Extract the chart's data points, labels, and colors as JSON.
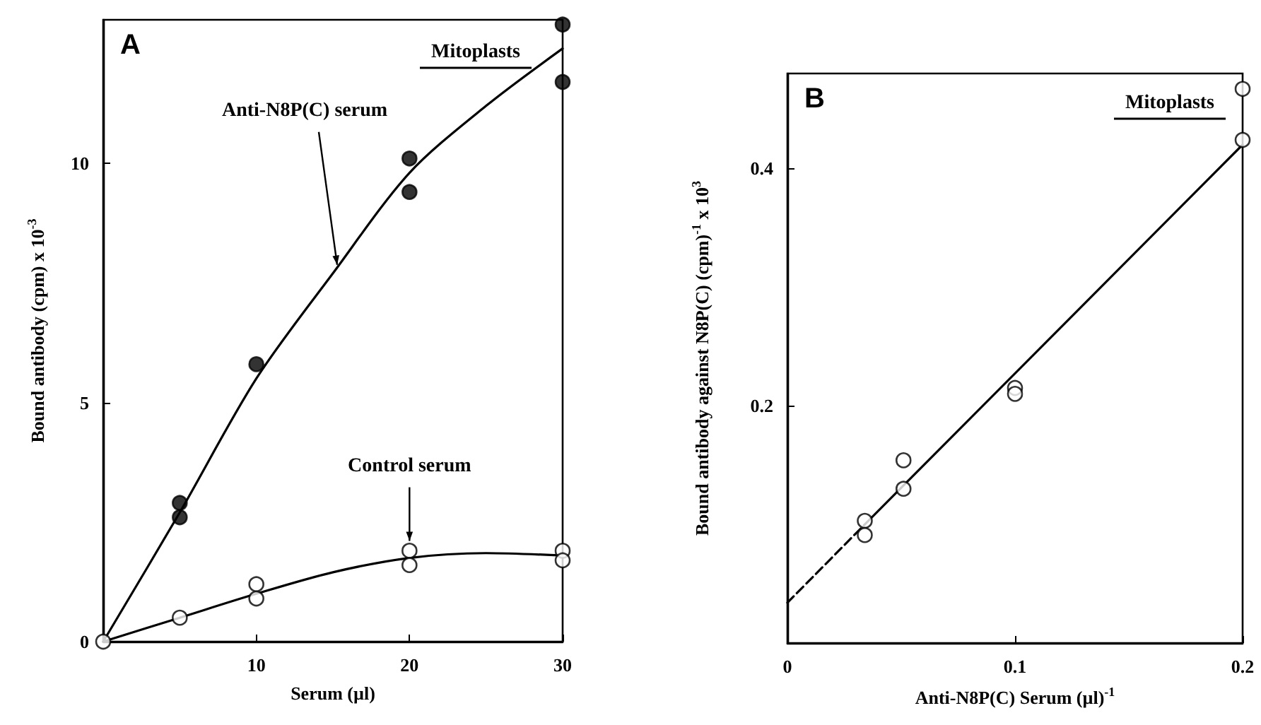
{
  "chart_data": [
    {
      "type": "scatter",
      "xlabel": "Serum (µl)",
      "ylabel": "Bound antibody (cpm) x 10$^{-3}$",
      "xlim": [
        0,
        30
      ],
      "ylim": [
        0,
        13
      ],
      "xticks": [
        {
          "value": 0,
          "label": null
        },
        10,
        20,
        30
      ],
      "yticks": [
        0,
        5,
        10
      ],
      "grid": false,
      "legend": false,
      "marker": "circle",
      "annotations": [
        "A",
        "Mitoplasts"
      ],
      "series": [
        {
          "name": "Anti-N8P(C) serum",
          "color": "#000000",
          "x": [
            5,
            5,
            10,
            20,
            20,
            30,
            30
          ],
          "values": [
            2.9,
            2.6,
            5.8,
            10.1,
            9.4,
            12.9,
            11.7
          ]
        },
        {
          "name": "Control serum",
          "color": "#ffffff",
          "x": [
            0,
            5,
            10,
            10,
            20,
            20,
            30,
            30
          ],
          "values": [
            0,
            0.5,
            1.2,
            0.9,
            1.9,
            1.6,
            1.9,
            1.7
          ]
        },
        {
          "type": "line",
          "color": "#000000",
          "marker": "none",
          "x": [
            0,
            5,
            10,
            15,
            20,
            25,
            30
          ],
          "values": [
            0,
            2.7,
            5.5,
            7.7,
            9.8,
            11.2,
            12.4
          ]
        },
        {
          "type": "line",
          "color": "#000000",
          "marker": "none",
          "x": [
            0,
            5,
            10,
            15,
            20,
            25,
            30
          ],
          "values": [
            0,
            0.5,
            1.0,
            1.45,
            1.75,
            1.85,
            1.8
          ]
        }
      ]
    },
    {
      "type": "scatter",
      "xlabel": "Anti-N8P(C) Serum (µl)$^{-1}$",
      "ylabel": "Bound antibody against N8P(C) (cpm)$^{-1}$ x 10$^{3}$",
      "xlim": [
        0,
        0.2
      ],
      "ylim": [
        0,
        0.48
      ],
      "xticks": [
        0,
        0.1,
        0.2
      ],
      "yticks": [
        0.2,
        0.4
      ],
      "grid": false,
      "legend": false,
      "marker": "circle",
      "annotations": [
        "B",
        "Mitoplasts"
      ],
      "series": [
        {
          "color": "#ffffff",
          "x": [
            0.034,
            0.034,
            0.051,
            0.051,
            0.1,
            0.1,
            0.2,
            0.2
          ],
          "values": [
            0.103,
            0.091,
            0.154,
            0.13,
            0.215,
            0.21,
            0.467,
            0.424
          ]
        },
        {
          "type": "line",
          "color": "#000000",
          "marker": "none",
          "x": [
            0.034,
            0.2
          ],
          "values": [
            0.1,
            0.42
          ]
        },
        {
          "type": "line",
          "line_style": "dashed",
          "color": "#000000",
          "marker": "none",
          "x": [
            0,
            0.034
          ],
          "values": [
            0.034,
            0.1
          ]
        }
      ]
    }
  ]
}
